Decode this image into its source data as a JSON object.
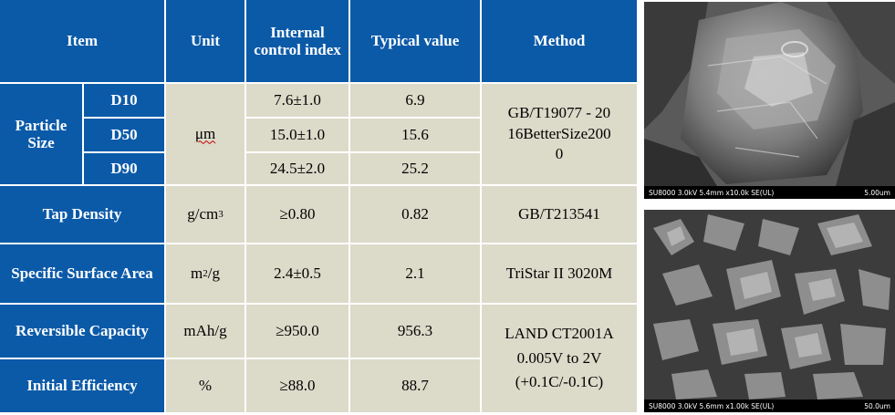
{
  "table": {
    "headers": {
      "item": "Item",
      "unit": "Unit",
      "internal_control_index": "Internal control index",
      "typical_value": "Typical value",
      "method": "Method"
    },
    "particle_size": {
      "label": "Particle Size",
      "unit": "μm",
      "method": "GB/T19077 - 2016BetterSize2000",
      "rows": [
        {
          "name": "D10",
          "index": "7.6±1.0",
          "typical": "6.9"
        },
        {
          "name": "D50",
          "index": "15.0±1.0",
          "typical": "15.6"
        },
        {
          "name": "D90",
          "index": "24.5±2.0",
          "typical": "25.2"
        }
      ]
    },
    "tap_density": {
      "label": "Tap Density",
      "unit_base": "g/cm",
      "unit_sup": "3",
      "index": "≥0.80",
      "typical": "0.82",
      "method": "GB/T213541"
    },
    "specific_surface_area": {
      "label": "Specific Surface Area",
      "unit_base": "m",
      "unit_sup": "2",
      "unit_tail": "/g",
      "index": "2.4±0.5",
      "typical": "2.1",
      "method": "TriStar II 3020M"
    },
    "reversible_capacity": {
      "label": "Reversible Capacity",
      "unit": "mAh/g",
      "index": "≥950.0",
      "typical": "956.3"
    },
    "initial_efficiency": {
      "label": "Initial Efficiency",
      "unit": "%",
      "index": "≥88.0",
      "typical": "88.7"
    },
    "capacity_method": {
      "line1": "LAND CT2001A",
      "line2": "0.005V to 2V",
      "line3": "(+0.1C/-0.1C)"
    }
  },
  "sem_images": [
    {
      "info": "SU8000 3.0kV 5.4mm x10.0k SE(UL)",
      "scale": "5.00um"
    },
    {
      "info": "SU8000 3.0kV 5.6mm x1.00k SE(UL)",
      "scale": "50.0um"
    }
  ]
}
